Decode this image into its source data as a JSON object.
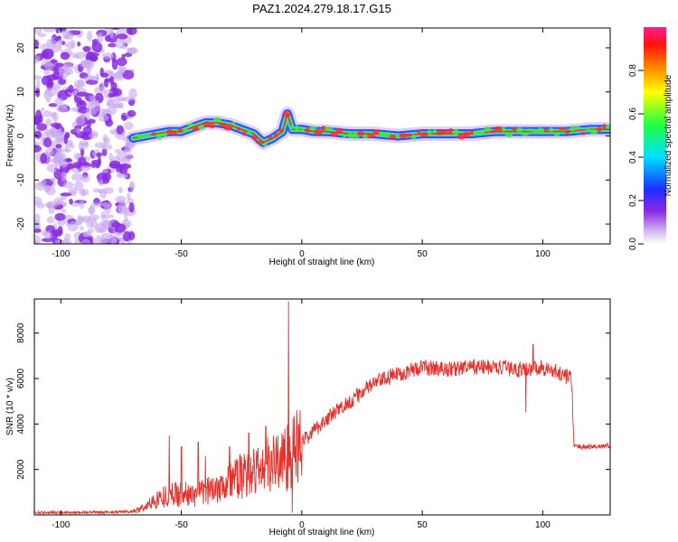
{
  "figure": {
    "title": "PAZ1.2024.279.18.17.G15"
  },
  "colors": {
    "snr_line": "#e8302b",
    "ridge_core": "#ff2a2a",
    "ridge_inner": "#40f040",
    "ridge_mid": "#20d8ff",
    "ridge_outer": "#1e3cff",
    "noise": "#8a2be2",
    "noise_light": "#c8a8f0",
    "axis": "#000000"
  },
  "chart_data": [
    {
      "type": "heatmap",
      "name": "spectrogram",
      "xlabel": "Height of straight line (km)",
      "ylabel": "Frequency (Hz)",
      "xlim": [
        -111,
        128
      ],
      "ylim": [
        -24.5,
        24.5
      ],
      "x_ticks": [
        -100,
        -50,
        0,
        50,
        100
      ],
      "y_ticks": [
        -20,
        -10,
        0,
        10,
        20
      ],
      "grid": false,
      "noise_region_x": [
        -111,
        -70
      ],
      "ridge": [
        {
          "x": -70,
          "y": -0.5
        },
        {
          "x": -65,
          "y": 0
        },
        {
          "x": -60,
          "y": 0.5
        },
        {
          "x": -55,
          "y": 1
        },
        {
          "x": -50,
          "y": 1
        },
        {
          "x": -45,
          "y": 2
        },
        {
          "x": -40,
          "y": 3
        },
        {
          "x": -35,
          "y": 3
        },
        {
          "x": -30,
          "y": 2.5
        },
        {
          "x": -25,
          "y": 1.5
        },
        {
          "x": -20,
          "y": 0.5
        },
        {
          "x": -16,
          "y": -1.5
        },
        {
          "x": -12,
          "y": -0.5
        },
        {
          "x": -8,
          "y": 1
        },
        {
          "x": -6,
          "y": 5
        },
        {
          "x": -4,
          "y": 1.5
        },
        {
          "x": 0,
          "y": 1.5
        },
        {
          "x": 5,
          "y": 1
        },
        {
          "x": 10,
          "y": 1
        },
        {
          "x": 20,
          "y": 0.5
        },
        {
          "x": 30,
          "y": 0.5
        },
        {
          "x": 40,
          "y": 0
        },
        {
          "x": 50,
          "y": 0.5
        },
        {
          "x": 60,
          "y": 0.5
        },
        {
          "x": 70,
          "y": 0.5
        },
        {
          "x": 80,
          "y": 1
        },
        {
          "x": 90,
          "y": 1
        },
        {
          "x": 100,
          "y": 1
        },
        {
          "x": 110,
          "y": 1
        },
        {
          "x": 120,
          "y": 1.5
        },
        {
          "x": 128,
          "y": 1.5
        }
      ]
    },
    {
      "type": "colorbar",
      "label": "Normalized spectral amplitude",
      "range": [
        0,
        1
      ],
      "ticks": [
        "0.0",
        "0.2",
        "0.4",
        "0.6",
        "0.8"
      ]
    },
    {
      "type": "line",
      "name": "snr",
      "xlabel": "Height of straight line (km)",
      "ylabel": "SNR (10 * v/v)",
      "xlim": [
        -111,
        128
      ],
      "ylim": [
        0,
        9500
      ],
      "x_ticks": [
        -100,
        -50,
        0,
        50,
        100
      ],
      "y_ticks": [
        2000,
        4000,
        6000,
        8000
      ],
      "grid": false,
      "envelope": [
        {
          "x": -111,
          "y": 100
        },
        {
          "x": -80,
          "y": 120
        },
        {
          "x": -70,
          "y": 150
        },
        {
          "x": -65,
          "y": 350
        },
        {
          "x": -60,
          "y": 700
        },
        {
          "x": -55,
          "y": 900
        },
        {
          "x": -50,
          "y": 950
        },
        {
          "x": -45,
          "y": 850
        },
        {
          "x": -40,
          "y": 1000
        },
        {
          "x": -35,
          "y": 1300
        },
        {
          "x": -30,
          "y": 1500
        },
        {
          "x": -25,
          "y": 1700
        },
        {
          "x": -20,
          "y": 1900
        },
        {
          "x": -15,
          "y": 2100
        },
        {
          "x": -10,
          "y": 2400
        },
        {
          "x": -5,
          "y": 2600
        },
        {
          "x": 0,
          "y": 3200
        },
        {
          "x": 5,
          "y": 3700
        },
        {
          "x": 10,
          "y": 4200
        },
        {
          "x": 20,
          "y": 5000
        },
        {
          "x": 30,
          "y": 5800
        },
        {
          "x": 40,
          "y": 6200
        },
        {
          "x": 50,
          "y": 6500
        },
        {
          "x": 60,
          "y": 6400
        },
        {
          "x": 70,
          "y": 6500
        },
        {
          "x": 80,
          "y": 6500
        },
        {
          "x": 90,
          "y": 6400
        },
        {
          "x": 100,
          "y": 6500
        },
        {
          "x": 110,
          "y": 6100
        },
        {
          "x": 112,
          "y": 6000
        },
        {
          "x": 113,
          "y": 3000
        },
        {
          "x": 120,
          "y": 3000
        },
        {
          "x": 128,
          "y": 3050
        }
      ],
      "spikes": [
        {
          "x": -55,
          "y": 3500
        },
        {
          "x": -50,
          "y": 3000
        },
        {
          "x": -43,
          "y": 3200
        },
        {
          "x": -40,
          "y": 2600
        },
        {
          "x": -30,
          "y": 3000
        },
        {
          "x": -22,
          "y": 3600
        },
        {
          "x": -15,
          "y": 3900
        },
        {
          "x": -5.5,
          "y": 9400
        },
        {
          "x": -4,
          "y": 100
        },
        {
          "x": 93,
          "y": 4500
        },
        {
          "x": 96,
          "y": 7500
        }
      ]
    }
  ]
}
